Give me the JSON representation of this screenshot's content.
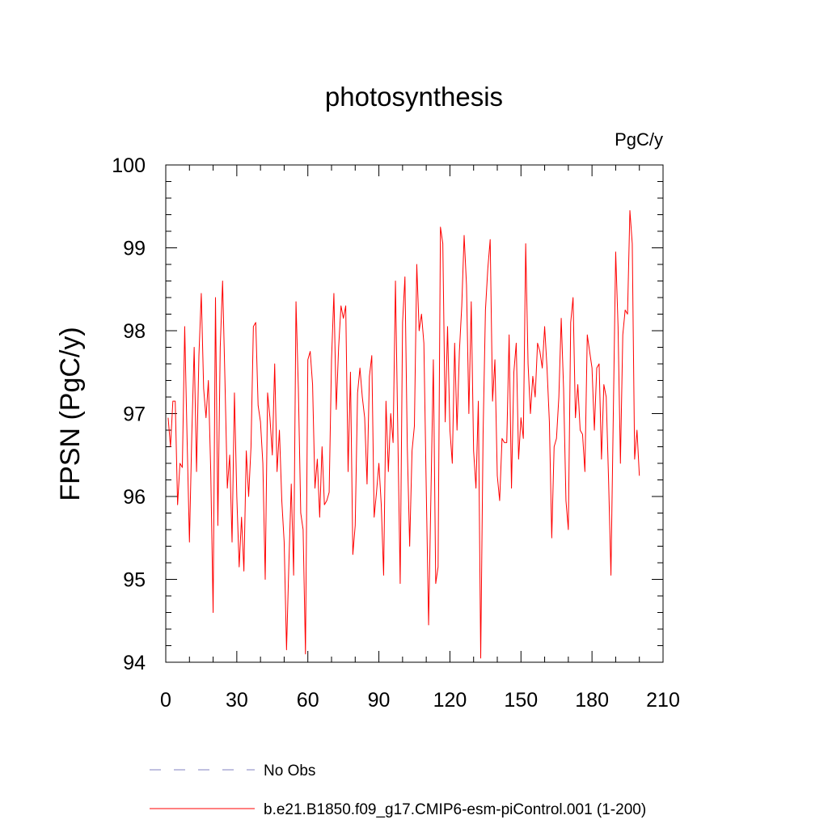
{
  "chart_data": {
    "type": "line",
    "title": "photosynthesis",
    "units": "PgC/y",
    "xlabel": "",
    "ylabel": "FPSN  (PgC/y)",
    "xlim": [
      0,
      210
    ],
    "ylim": [
      94,
      100
    ],
    "xticks": [
      0,
      30,
      60,
      90,
      120,
      150,
      180,
      210
    ],
    "yticks": [
      94,
      95,
      96,
      97,
      98,
      99,
      100
    ],
    "grid": false,
    "legend_position": "bottom",
    "series": [
      {
        "name": "No Obs",
        "color": "#8080c0",
        "dash": "dashed",
        "values": []
      },
      {
        "name": "b.e21.B1850.f09_g17.CMIP6-esm-piControl.001 (1-200)",
        "color": "#ff0000",
        "dash": "solid",
        "x_start": 1,
        "values": [
          96.95,
          96.6,
          97.15,
          97.15,
          95.9,
          96.4,
          96.35,
          98.05,
          96.7,
          95.45,
          96.75,
          97.8,
          96.3,
          97.7,
          98.45,
          97.3,
          96.95,
          97.4,
          96.3,
          94.6,
          98.4,
          95.65,
          97.8,
          98.6,
          97.4,
          96.1,
          96.5,
          95.45,
          97.25,
          96.0,
          95.15,
          95.75,
          95.1,
          96.55,
          96.0,
          96.6,
          98.05,
          98.1,
          97.1,
          96.9,
          96.4,
          95.0,
          97.25,
          96.95,
          96.5,
          97.6,
          96.3,
          96.8,
          95.95,
          95.45,
          94.15,
          95.2,
          96.15,
          95.05,
          98.35,
          97.3,
          95.8,
          95.6,
          94.1,
          97.65,
          97.75,
          97.35,
          96.1,
          96.45,
          95.75,
          96.6,
          95.9,
          95.95,
          96.05,
          97.65,
          98.45,
          97.05,
          97.8,
          98.3,
          98.15,
          98.3,
          96.3,
          97.5,
          95.3,
          95.65,
          97.25,
          97.55,
          97.2,
          96.95,
          96.15,
          97.45,
          97.7,
          95.75,
          96.05,
          96.4,
          95.9,
          95.05,
          97.15,
          96.3,
          97.0,
          96.65,
          98.6,
          96.75,
          94.95,
          98.1,
          98.65,
          96.6,
          95.4,
          96.55,
          96.85,
          98.8,
          98.0,
          98.2,
          97.85,
          96.1,
          94.45,
          96.05,
          97.65,
          94.95,
          95.15,
          99.25,
          99.05,
          96.9,
          98.05,
          96.8,
          96.4,
          97.85,
          96.8,
          97.75,
          98.3,
          99.15,
          98.55,
          97.0,
          98.35,
          96.55,
          96.1,
          97.15,
          94.05,
          96.75,
          98.25,
          98.75,
          99.1,
          97.15,
          97.65,
          96.25,
          95.95,
          96.7,
          96.65,
          96.65,
          97.95,
          96.1,
          97.5,
          97.85,
          96.45,
          96.95,
          96.7,
          99.05,
          97.6,
          97.0,
          97.45,
          97.2,
          97.85,
          97.75,
          97.55,
          98.05,
          97.55,
          96.9,
          95.5,
          96.6,
          96.7,
          97.2,
          98.15,
          97.3,
          95.95,
          95.6,
          98.1,
          98.4,
          96.95,
          97.35,
          96.8,
          96.75,
          96.3,
          97.95,
          97.75,
          97.55,
          96.8,
          97.55,
          97.6,
          96.45,
          97.35,
          97.2,
          96.2,
          95.05,
          97.0,
          98.95,
          98.05,
          96.4,
          97.95,
          98.25,
          98.2,
          99.45,
          99.05,
          96.45,
          96.8,
          96.25
        ]
      }
    ]
  }
}
